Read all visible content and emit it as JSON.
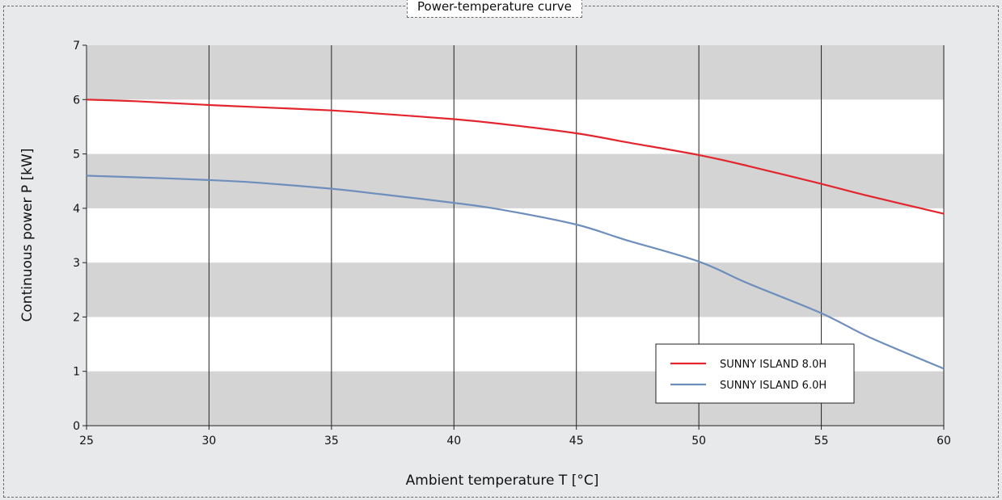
{
  "chart_data": {
    "type": "line",
    "title": "Power-temperature curve",
    "xlabel": "Ambient temperature T [°C]",
    "ylabel": "Continuous power P [kW]",
    "xlim": [
      25,
      60
    ],
    "ylim": [
      0,
      7
    ],
    "x_ticks": [
      25,
      30,
      35,
      40,
      45,
      50,
      55,
      60
    ],
    "y_ticks": [
      0,
      1,
      2,
      3,
      4,
      5,
      6,
      7
    ],
    "grid": "vertical lines with alternating horizontal bands",
    "legend_position": "bottom-right",
    "band_color": "#d4d4d4",
    "series": [
      {
        "name": "SUNNY ISLAND 8.0H",
        "color": "#e3262e",
        "x": [
          25,
          27,
          30,
          32,
          35,
          37,
          40,
          42,
          45,
          47,
          50,
          52,
          55,
          57,
          60
        ],
        "y": [
          6.0,
          5.97,
          5.9,
          5.86,
          5.8,
          5.74,
          5.64,
          5.55,
          5.38,
          5.22,
          4.98,
          4.78,
          4.45,
          4.22,
          3.9
        ]
      },
      {
        "name": "SUNNY ISLAND 6.0H",
        "color": "#6e8fbb",
        "x": [
          25,
          27,
          30,
          32,
          35,
          37,
          40,
          42,
          45,
          47,
          50,
          52,
          55,
          57,
          60
        ],
        "y": [
          4.6,
          4.57,
          4.52,
          4.47,
          4.36,
          4.26,
          4.1,
          3.97,
          3.7,
          3.42,
          3.02,
          2.62,
          2.07,
          1.62,
          1.05
        ]
      }
    ]
  }
}
